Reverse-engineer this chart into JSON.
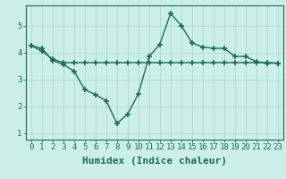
{
  "line1_x": [
    0,
    1,
    2,
    3,
    4,
    5,
    6,
    7,
    8,
    9,
    10,
    11,
    12,
    13,
    14,
    15,
    16,
    17,
    18,
    19,
    20,
    21,
    22,
    23
  ],
  "line1_y": [
    4.25,
    4.15,
    3.7,
    3.55,
    3.3,
    2.62,
    2.42,
    2.2,
    1.35,
    1.7,
    2.45,
    3.85,
    4.3,
    5.45,
    5.0,
    4.35,
    4.2,
    4.15,
    4.15,
    3.85,
    3.85,
    3.65,
    3.6,
    3.6
  ],
  "line2_x": [
    0,
    1,
    2,
    3,
    4,
    5,
    6,
    7,
    8,
    9,
    10,
    11,
    12,
    13,
    14,
    15,
    16,
    17,
    18,
    19,
    20,
    21,
    22,
    23
  ],
  "line2_y": [
    4.25,
    4.05,
    3.75,
    3.62,
    3.62,
    3.62,
    3.62,
    3.62,
    3.62,
    3.62,
    3.62,
    3.62,
    3.62,
    3.62,
    3.62,
    3.62,
    3.62,
    3.62,
    3.62,
    3.62,
    3.62,
    3.62,
    3.62,
    3.6
  ],
  "line_color": "#1a6b5a",
  "bg_color": "#cceee8",
  "grid_color": "#aaddcc",
  "xlabel": "Humidex (Indice chaleur)",
  "xlim": [
    -0.5,
    23.5
  ],
  "ylim": [
    0.75,
    5.75
  ],
  "yticks": [
    1,
    2,
    3,
    4,
    5
  ],
  "xticks": [
    0,
    1,
    2,
    3,
    4,
    5,
    6,
    7,
    8,
    9,
    10,
    11,
    12,
    13,
    14,
    15,
    16,
    17,
    18,
    19,
    20,
    21,
    22,
    23
  ],
  "marker": "+",
  "markersize": 4,
  "linewidth": 1.0,
  "xlabel_fontsize": 8,
  "tick_fontsize": 6.5
}
